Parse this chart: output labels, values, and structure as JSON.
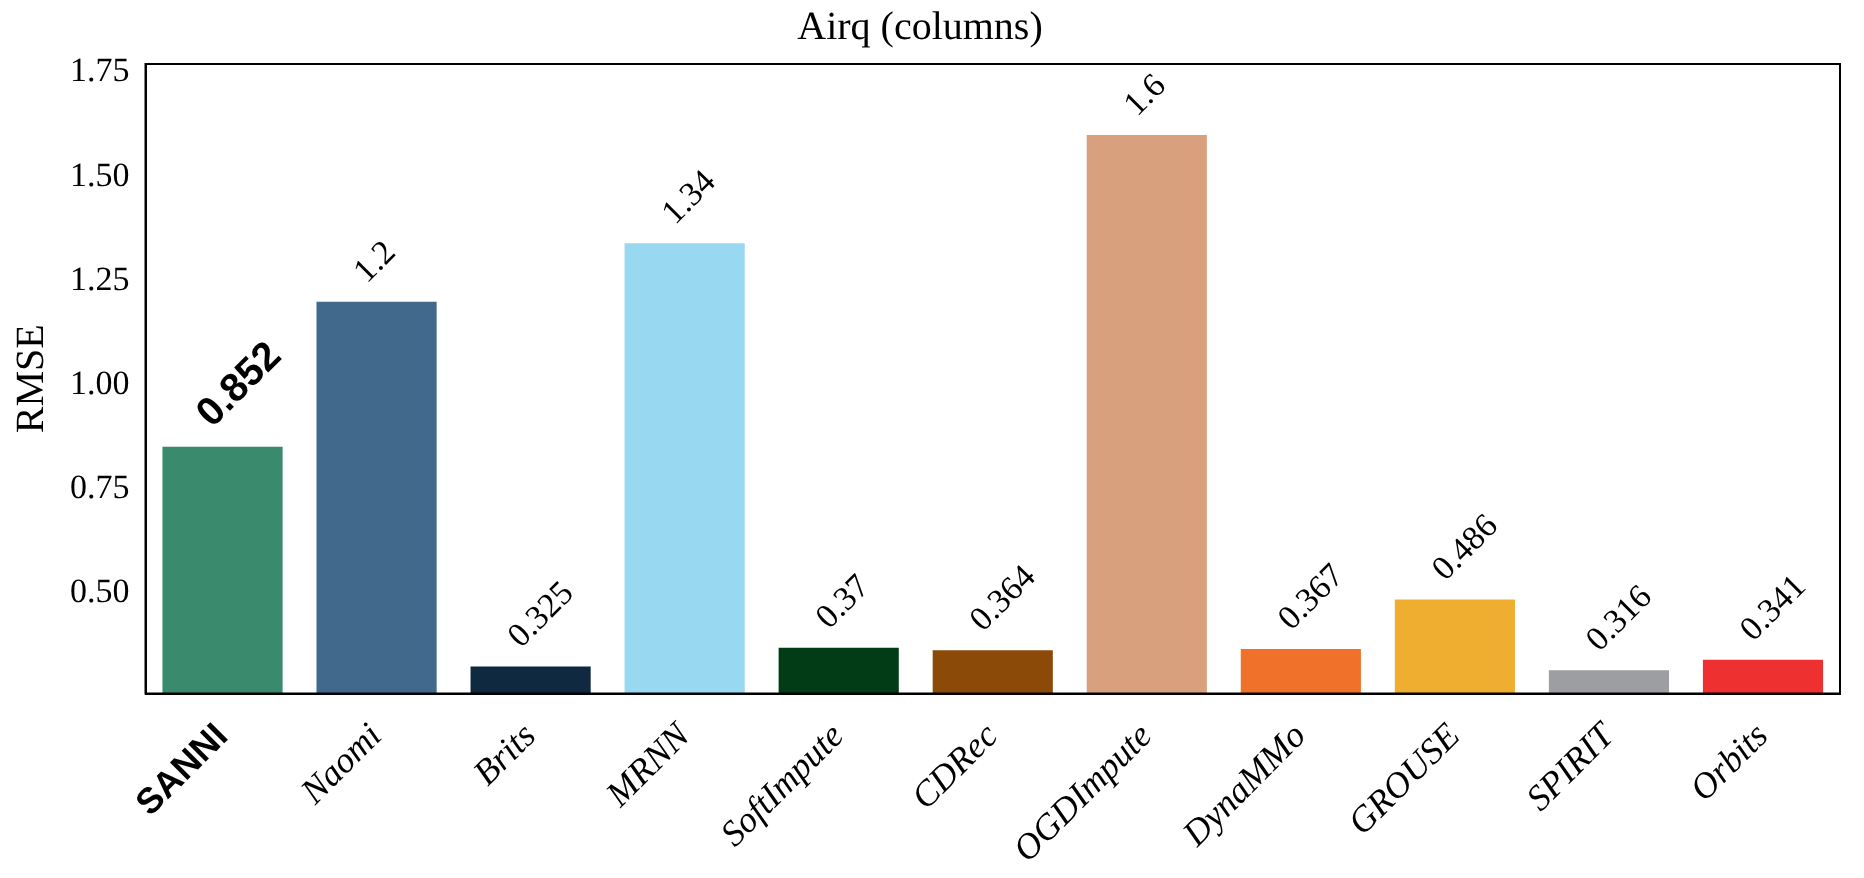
{
  "chart_data": {
    "type": "bar",
    "title": "Airq (columns)",
    "ylabel": "RMSE",
    "categories": [
      "SANNI",
      "Naomi",
      "Brits",
      "MRNN",
      "SoftImpute",
      "CDRec",
      "OGDImpute",
      "DynaMMo",
      "GROUSE",
      "SPIRIT",
      "Orbits"
    ],
    "values": [
      0.852,
      1.2,
      0.325,
      1.34,
      0.37,
      0.364,
      1.6,
      0.367,
      0.486,
      0.316,
      0.341
    ],
    "colors": [
      "#3a8a6e",
      "#41698c",
      "#0f2a40",
      "#98d8f0",
      "#013c16",
      "#8b4a08",
      "#d9a07e",
      "#f0722a",
      "#f0ae30",
      "#9c9ea2",
      "#ee3030"
    ],
    "ylim": [
      0.26,
      1.77
    ],
    "yticks": [
      {
        "value": 0.5,
        "label": "0.50"
      },
      {
        "value": 0.75,
        "label": "0.75"
      },
      {
        "value": 1.0,
        "label": "1.00"
      },
      {
        "value": 1.25,
        "label": "1.25"
      },
      {
        "value": 1.5,
        "label": "1.50"
      },
      {
        "value": 1.75,
        "label": "1.75"
      }
    ],
    "data_labels": true,
    "grid": false,
    "legend": false
  }
}
